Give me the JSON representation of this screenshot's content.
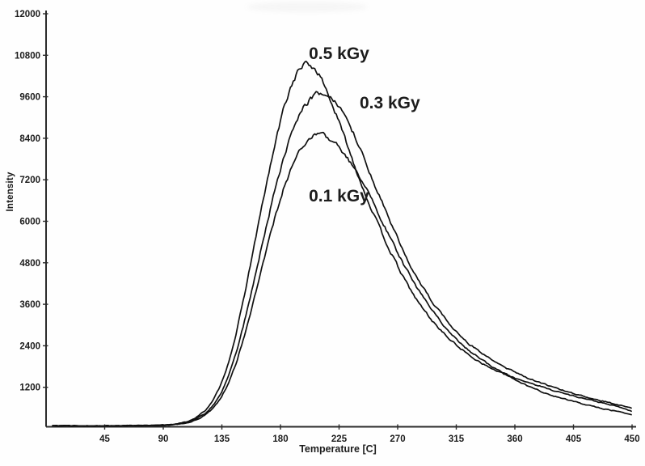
{
  "figure": {
    "background": "#fefefe",
    "curve_color": "#101010",
    "axis_color": "#2b2b2b",
    "text_color": "#1c1c1c"
  },
  "chart_data": {
    "type": "line",
    "title": "",
    "xlabel": "Temperature [C]",
    "ylabel": "Intensity",
    "xlim": [
      0,
      455
    ],
    "ylim": [
      0,
      12000
    ],
    "grid": false,
    "legend_position": "none",
    "xticks": [
      45,
      90,
      135,
      180,
      225,
      270,
      315,
      360,
      405,
      450
    ],
    "yticks": [
      1200,
      2400,
      3600,
      4800,
      6000,
      7200,
      8400,
      9600,
      10800,
      12000
    ],
    "annotations": [
      {
        "text": "0.5 kGy",
        "x": 225,
        "y": 10850
      },
      {
        "text": "0.3 kGy",
        "x": 264,
        "y": 9430
      },
      {
        "text": "0.1 kGy",
        "x": 225,
        "y": 6740
      }
    ],
    "x": [
      5,
      20,
      40,
      60,
      80,
      90,
      100,
      108,
      115,
      122,
      128,
      134,
      140,
      146,
      152,
      158,
      164,
      170,
      176,
      182,
      188,
      193,
      198,
      203,
      208,
      213,
      218,
      224,
      230,
      238,
      246,
      255,
      264,
      274,
      285,
      297,
      310,
      325,
      340,
      355,
      370,
      385,
      400,
      415,
      430,
      442,
      450
    ],
    "series": [
      {
        "name": "0.5 kGy",
        "peak": {
          "temperature": 200,
          "intensity": 10550
        },
        "y": [
          90,
          85,
          85,
          90,
          95,
          105,
          140,
          200,
          320,
          520,
          800,
          1250,
          1900,
          2750,
          3800,
          4950,
          6100,
          7200,
          8250,
          9200,
          9900,
          10300,
          10550,
          10500,
          10350,
          10000,
          9550,
          8950,
          8350,
          7500,
          6700,
          5900,
          5150,
          4400,
          3700,
          3100,
          2580,
          2120,
          1780,
          1520,
          1350,
          1160,
          1000,
          860,
          720,
          610,
          500
        ]
      },
      {
        "name": "0.3 kGy",
        "peak": {
          "temperature": 212,
          "intensity": 9700
        },
        "y": [
          90,
          85,
          85,
          90,
          95,
          105,
          130,
          180,
          280,
          440,
          660,
          1000,
          1500,
          2200,
          3050,
          4000,
          5000,
          6000,
          6950,
          7800,
          8500,
          8950,
          9300,
          9550,
          9680,
          9700,
          9600,
          9350,
          9000,
          8400,
          7650,
          6800,
          6000,
          5150,
          4350,
          3650,
          3000,
          2450,
          2050,
          1730,
          1470,
          1260,
          1080,
          920,
          780,
          670,
          590
        ]
      },
      {
        "name": "0.1 kGy",
        "peak": {
          "temperature": 213,
          "intensity": 8500
        },
        "y": [
          90,
          85,
          85,
          88,
          92,
          100,
          125,
          165,
          250,
          390,
          580,
          870,
          1300,
          1900,
          2650,
          3500,
          4400,
          5300,
          6150,
          6900,
          7500,
          7950,
          8250,
          8420,
          8500,
          8480,
          8380,
          8180,
          7900,
          7450,
          6900,
          6250,
          5550,
          4800,
          4050,
          3400,
          2780,
          2250,
          1850,
          1540,
          1230,
          1010,
          840,
          690,
          560,
          470,
          400
        ]
      }
    ],
    "style": {
      "noisy_trace": true
    }
  }
}
